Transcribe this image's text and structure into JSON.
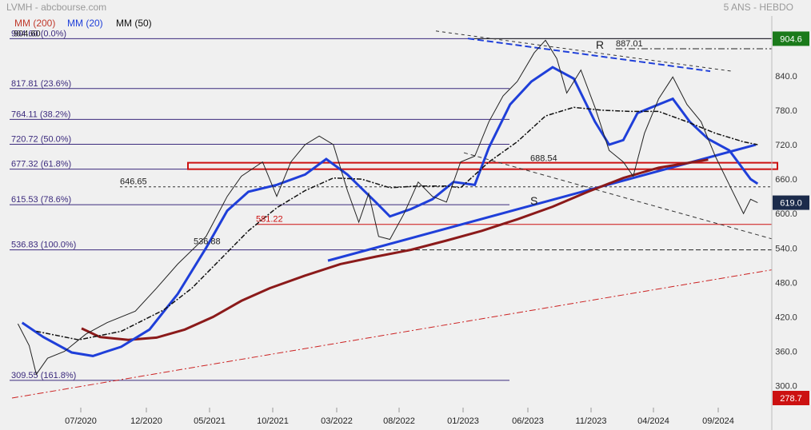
{
  "header": {
    "title": "LVMH - abcbourse.com",
    "period": "5 ANS - HEBDO",
    "legend": [
      {
        "label": "MM (200)",
        "color": "#c0392b"
      },
      {
        "label": "MM (20)",
        "color": "#1f3fd9"
      },
      {
        "label": "MM (50)",
        "color": "#111111"
      }
    ]
  },
  "chart_data": {
    "type": "line",
    "yaxis": {
      "ticks": [
        300,
        360,
        420,
        480,
        540,
        600,
        660,
        720,
        780,
        840
      ],
      "ylim": [
        262,
        940
      ],
      "position": "right"
    },
    "xaxis": {
      "labels": [
        "07/2020",
        "12/2020",
        "05/2021",
        "10/2021",
        "03/2022",
        "08/2022",
        "01/2023",
        "06/2023",
        "11/2023",
        "04/2024",
        "09/2024"
      ]
    },
    "price_badges": [
      {
        "label": "904.6",
        "value": 904.6,
        "color": "#1a7a1a"
      },
      {
        "label": "619.0",
        "value": 619.0,
        "color": "#1b2b4b"
      },
      {
        "label": "278.7",
        "value": 278.7,
        "color": "#cc1111"
      }
    ],
    "fibonacci": [
      {
        "label": "904.60 (0.0%)",
        "value": 904.6
      },
      {
        "label": "817.81 (23.6%)",
        "value": 817.81
      },
      {
        "label": "764.11 (38.2%)",
        "value": 764.11
      },
      {
        "label": "720.72 (50.0%)",
        "value": 720.72
      },
      {
        "label": "677.32 (61.8%)",
        "value": 677.32
      },
      {
        "label": "615.53 (78.6%)",
        "value": 615.53
      },
      {
        "label": "536.83 (100.0%)",
        "value": 536.83
      },
      {
        "label": "309.55 (161.8%)",
        "value": 309.55
      }
    ],
    "annotations": [
      {
        "label": "904.60",
        "value": 904.6,
        "color": "#222222"
      },
      {
        "label": "887.01",
        "value": 887.01,
        "color": "#222222"
      },
      {
        "label": "688.54",
        "value": 688.54,
        "color": "#222222"
      },
      {
        "label": "646.65",
        "value": 646.65,
        "color": "#222222"
      },
      {
        "label": "581.22",
        "value": 581.22,
        "color": "#cc1111"
      },
      {
        "label": "536.88",
        "value": 536.88,
        "color": "#222222"
      },
      {
        "label": "R",
        "value": 887.01,
        "color": "#222222"
      },
      {
        "label": "S",
        "value": 615.53,
        "color": "#222222"
      }
    ],
    "resistance_zone": [
      677.32,
      688.54
    ],
    "series": [
      {
        "name": "MM (200)",
        "color": "#8b1a1a",
        "points": [
          [
            2020.42,
            400
          ],
          [
            2020.55,
            385
          ],
          [
            2020.75,
            380
          ],
          [
            2020.95,
            384
          ],
          [
            2021.15,
            398
          ],
          [
            2021.35,
            420
          ],
          [
            2021.55,
            448
          ],
          [
            2021.75,
            470
          ],
          [
            2022.0,
            492
          ],
          [
            2022.25,
            512
          ],
          [
            2022.5,
            525
          ],
          [
            2022.75,
            537
          ],
          [
            2023.0,
            553
          ],
          [
            2023.25,
            570
          ],
          [
            2023.5,
            590
          ],
          [
            2023.75,
            612
          ],
          [
            2024.0,
            638
          ],
          [
            2024.25,
            662
          ],
          [
            2024.5,
            680
          ],
          [
            2024.75,
            690
          ],
          [
            2024.85,
            694
          ]
        ]
      },
      {
        "name": "MM (20)",
        "color": "#1f3fd9",
        "points": [
          [
            2020.0,
            410
          ],
          [
            2020.15,
            385
          ],
          [
            2020.35,
            358
          ],
          [
            2020.5,
            352
          ],
          [
            2020.7,
            368
          ],
          [
            2020.9,
            398
          ],
          [
            2021.1,
            460
          ],
          [
            2021.3,
            540
          ],
          [
            2021.45,
            605
          ],
          [
            2021.6,
            638
          ],
          [
            2021.8,
            650
          ],
          [
            2022.0,
            668
          ],
          [
            2022.15,
            695
          ],
          [
            2022.3,
            668
          ],
          [
            2022.5,
            620
          ],
          [
            2022.6,
            595
          ],
          [
            2022.75,
            608
          ],
          [
            2022.9,
            625
          ],
          [
            2023.05,
            655
          ],
          [
            2023.2,
            650
          ],
          [
            2023.3,
            715
          ],
          [
            2023.45,
            790
          ],
          [
            2023.6,
            830
          ],
          [
            2023.75,
            855
          ],
          [
            2023.9,
            835
          ],
          [
            2024.05,
            760
          ],
          [
            2024.15,
            720
          ],
          [
            2024.25,
            728
          ],
          [
            2024.35,
            775
          ],
          [
            2024.5,
            790
          ],
          [
            2024.6,
            800
          ],
          [
            2024.72,
            760
          ],
          [
            2024.85,
            730
          ],
          [
            2025.0,
            710
          ],
          [
            2025.15,
            660
          ],
          [
            2025.2,
            652
          ]
        ]
      },
      {
        "name": "MM (50)",
        "color": "#111111",
        "points": [
          [
            2020.1,
            395
          ],
          [
            2020.4,
            380
          ],
          [
            2020.7,
            395
          ],
          [
            2021.0,
            432
          ],
          [
            2021.2,
            470
          ],
          [
            2021.4,
            520
          ],
          [
            2021.6,
            570
          ],
          [
            2021.8,
            610
          ],
          [
            2022.0,
            640
          ],
          [
            2022.2,
            662
          ],
          [
            2022.4,
            660
          ],
          [
            2022.6,
            645
          ],
          [
            2022.8,
            648
          ],
          [
            2023.0,
            648
          ],
          [
            2023.1,
            645
          ],
          [
            2023.3,
            690
          ],
          [
            2023.5,
            725
          ],
          [
            2023.7,
            770
          ],
          [
            2023.9,
            785
          ],
          [
            2024.1,
            780
          ],
          [
            2024.3,
            778
          ],
          [
            2024.5,
            778
          ],
          [
            2024.7,
            760
          ],
          [
            2024.9,
            740
          ],
          [
            2025.1,
            725
          ],
          [
            2025.2,
            720
          ]
        ]
      },
      {
        "name": "",
        "color": "#222222",
        "points": [
          [
            2019.97,
            408
          ],
          [
            2020.05,
            370
          ],
          [
            2020.1,
            320
          ],
          [
            2020.18,
            348
          ],
          [
            2020.3,
            360
          ],
          [
            2020.45,
            390
          ],
          [
            2020.6,
            410
          ],
          [
            2020.8,
            430
          ],
          [
            2020.95,
            470
          ],
          [
            2021.1,
            512
          ],
          [
            2021.3,
            560
          ],
          [
            2021.45,
            630
          ],
          [
            2021.55,
            665
          ],
          [
            2021.7,
            690
          ],
          [
            2021.8,
            630
          ],
          [
            2021.9,
            690
          ],
          [
            2022.0,
            720
          ],
          [
            2022.1,
            735
          ],
          [
            2022.2,
            720
          ],
          [
            2022.3,
            640
          ],
          [
            2022.38,
            585
          ],
          [
            2022.45,
            635
          ],
          [
            2022.52,
            560
          ],
          [
            2022.6,
            555
          ],
          [
            2022.7,
            600
          ],
          [
            2022.8,
            655
          ],
          [
            2022.9,
            630
          ],
          [
            2023.0,
            620
          ],
          [
            2023.1,
            690
          ],
          [
            2023.2,
            700
          ],
          [
            2023.3,
            760
          ],
          [
            2023.4,
            805
          ],
          [
            2023.5,
            830
          ],
          [
            2023.62,
            880
          ],
          [
            2023.7,
            902
          ],
          [
            2023.78,
            870
          ],
          [
            2023.85,
            810
          ],
          [
            2023.95,
            850
          ],
          [
            2024.05,
            785
          ],
          [
            2024.15,
            710
          ],
          [
            2024.25,
            690
          ],
          [
            2024.32,
            665
          ],
          [
            2024.4,
            740
          ],
          [
            2024.5,
            800
          ],
          [
            2024.6,
            838
          ],
          [
            2024.7,
            790
          ],
          [
            2024.8,
            760
          ],
          [
            2024.9,
            700
          ],
          [
            2025.0,
            650
          ],
          [
            2025.1,
            600
          ],
          [
            2025.15,
            625
          ],
          [
            2025.2,
            619
          ]
        ]
      }
    ]
  }
}
